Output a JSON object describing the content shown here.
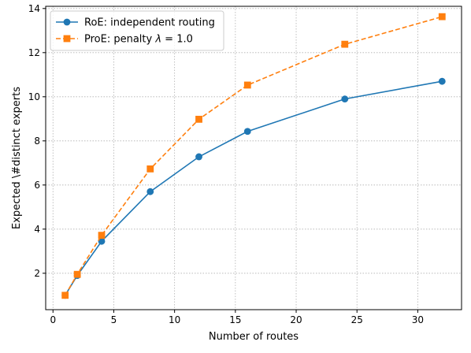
{
  "chart_data": {
    "type": "line",
    "xlabel": "Number of routes",
    "ylabel": "Expected \\#distinct experts",
    "xlim": [
      -0.6,
      33.6
    ],
    "ylim": [
      0.35,
      14.1
    ],
    "xticks": [
      0,
      5,
      10,
      15,
      20,
      25,
      30
    ],
    "yticks": [
      2,
      4,
      6,
      8,
      10,
      12,
      14
    ],
    "grid": true,
    "legend_position": "top-left",
    "series": [
      {
        "name": "RoE: independent routing",
        "color": "#1f77b4",
        "marker": "circle",
        "line_style": "solid",
        "x": [
          1,
          2,
          4,
          8,
          12,
          16,
          24,
          32
        ],
        "y": [
          1.0,
          1.9,
          3.45,
          5.7,
          7.28,
          8.43,
          9.9,
          10.7
        ]
      },
      {
        "name_prefix": "ProE: penalty ",
        "name_symbol": "λ",
        "name_suffix": " = 1.0",
        "color": "#ff7f0e",
        "marker": "square",
        "line_style": "dashed",
        "x": [
          1,
          2,
          4,
          8,
          12,
          16,
          24,
          32
        ],
        "y": [
          1.0,
          1.95,
          3.72,
          6.73,
          8.98,
          10.53,
          12.38,
          13.63
        ]
      }
    ]
  }
}
